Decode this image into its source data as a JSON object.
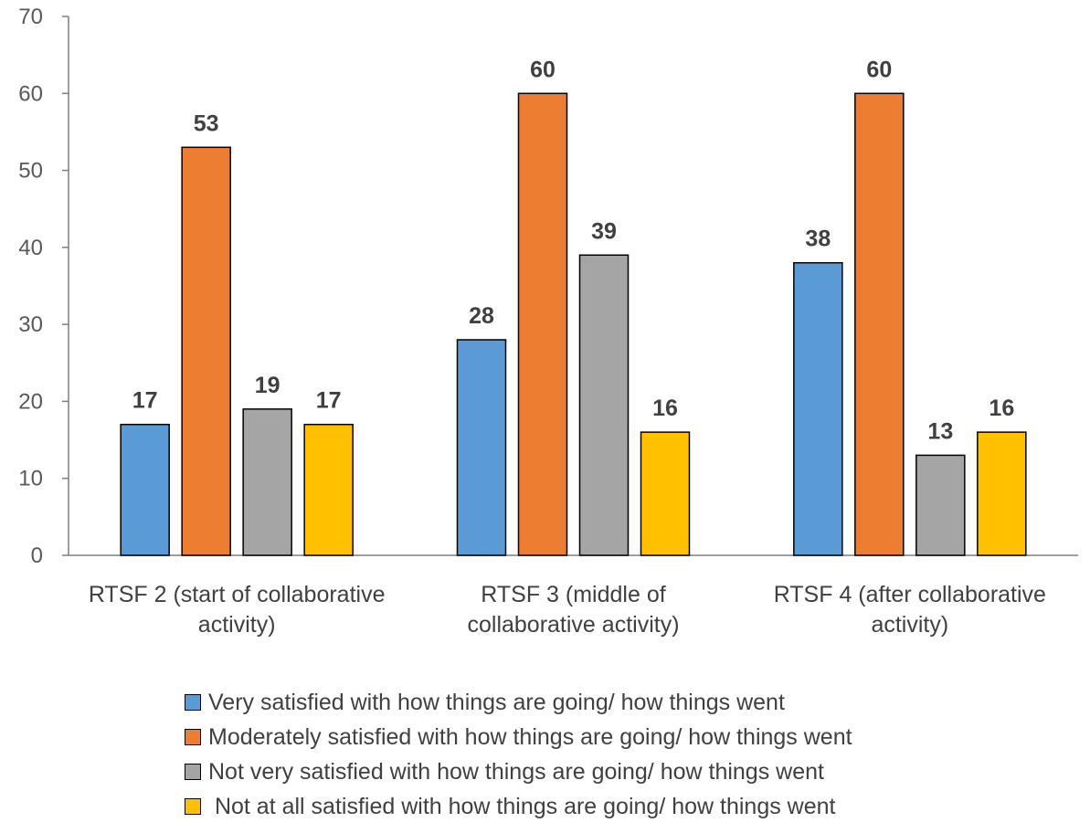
{
  "chart_data": {
    "type": "bar",
    "title": "",
    "xlabel": "",
    "ylabel": "",
    "ylim": [
      0,
      70
    ],
    "yticks": [
      0,
      10,
      20,
      30,
      40,
      50,
      60,
      70
    ],
    "grid": false,
    "legend_position": "bottom",
    "categories": [
      [
        "RTSF 2 (start of collaborative",
        "activity)"
      ],
      [
        "RTSF 3 (middle of",
        "collaborative activity)"
      ],
      [
        "RTSF 4 (after collaborative",
        "activity)"
      ]
    ],
    "series": [
      {
        "name": "Very satisfied with how things are going/ how things went",
        "color": "#5B9BD5",
        "values": [
          17,
          28,
          38
        ]
      },
      {
        "name": "Moderately satisfied with how things are going/ how things went",
        "color": "#ED7D31",
        "values": [
          53,
          60,
          60
        ]
      },
      {
        "name": "Not very satisfied with how things are going/ how things went",
        "color": "#A5A5A5",
        "values": [
          19,
          39,
          13
        ]
      },
      {
        "name": " Not at all satisfied with how things are going/ how things went",
        "color": "#FFC000",
        "values": [
          17,
          16,
          16
        ]
      }
    ]
  }
}
